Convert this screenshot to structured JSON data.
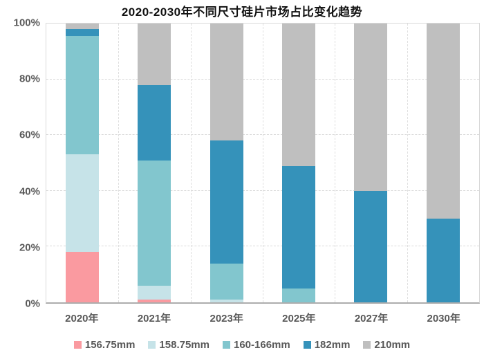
{
  "title": "2020-2030年不同尺寸硅片市场占比变化趋势",
  "colors": {
    "pink": "#fa9aa0",
    "light_blue": "#c6e3e8",
    "teal": "#82c6ce",
    "dark_blue": "#3592ba",
    "gray": "#bfbfbf",
    "axis_text": "#595959",
    "gridline": "#d9d9d9",
    "title_text": "#111111"
  },
  "chart_data": {
    "type": "bar",
    "stacked": true,
    "title": "2020-2030年不同尺寸硅片市场占比变化趋势",
    "categories": [
      "2020年",
      "2021年",
      "2023年",
      "2025年",
      "2027年",
      "2030年"
    ],
    "series": [
      {
        "name": "156.75mm",
        "color": "#fa9aa0",
        "values": [
          18,
          1,
          0,
          0,
          0,
          0
        ]
      },
      {
        "name": "158.75mm",
        "color": "#c6e3e8",
        "values": [
          35,
          5,
          1,
          0,
          0,
          0
        ]
      },
      {
        "name": "160-166mm",
        "color": "#82c6ce",
        "values": [
          42.5,
          45,
          13,
          5,
          0,
          0
        ]
      },
      {
        "name": "182mm",
        "color": "#3592ba",
        "values": [
          2.5,
          27,
          44,
          44,
          40,
          30
        ]
      },
      {
        "name": "210mm",
        "color": "#bfbfbf",
        "values": [
          2,
          22,
          42,
          51,
          60,
          70
        ]
      }
    ],
    "y_ticks": [
      "0%",
      "20%",
      "40%",
      "60%",
      "80%",
      "100%"
    ],
    "ylim": [
      0,
      100
    ],
    "xlabel": "",
    "ylabel": "",
    "grid": true,
    "gridline_style": "dashed",
    "legend_position": "bottom"
  }
}
